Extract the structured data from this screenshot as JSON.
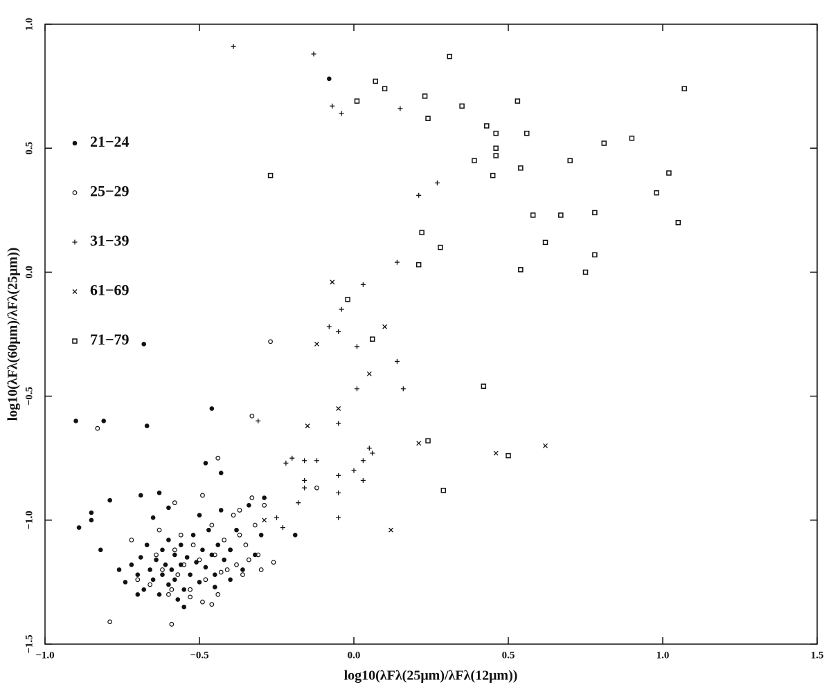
{
  "chart_data": {
    "type": "scatter",
    "xlabel": "log10(λFλ(25μm)/λFλ(12μm))",
    "ylabel": "log10(λFλ(60μm)/λFλ(25μm))",
    "xlim": [
      -1.0,
      1.5
    ],
    "ylim": [
      -1.5,
      1.0
    ],
    "xticks": [
      {
        "value": -1.0,
        "label": "−1.0"
      },
      {
        "value": -0.5,
        "label": "−0.5"
      },
      {
        "value": 0,
        "label": "0.0"
      },
      0.5,
      {
        "value": 1.0,
        "label": "1.0"
      },
      {
        "value": 1.5,
        "label": "1.5"
      }
    ],
    "yticks": [
      {
        "value": -1.5,
        "label": "−1.5"
      },
      {
        "value": -1.0,
        "label": "−1.0"
      },
      {
        "value": -0.5,
        "label": "−0.5"
      },
      {
        "value": 0,
        "label": "0.0"
      },
      0.5,
      {
        "value": 1.0,
        "label": "1.0"
      }
    ],
    "legend": "left",
    "series": [
      {
        "name": "21−24",
        "color": "#111111",
        "marker": "filled-circle",
        "x": [
          -0.9,
          -0.81,
          -0.67,
          -0.46,
          -0.48,
          -0.43,
          -0.89,
          -0.85,
          -0.85,
          -0.82,
          -0.79,
          -0.69,
          -0.63,
          -0.68,
          -0.76,
          -0.74,
          -0.72,
          -0.7,
          -0.69,
          -0.68,
          -0.67,
          -0.66,
          -0.65,
          -0.64,
          -0.63,
          -0.62,
          -0.62,
          -0.61,
          -0.6,
          -0.6,
          -0.59,
          -0.58,
          -0.58,
          -0.57,
          -0.56,
          -0.56,
          -0.55,
          -0.54,
          -0.53,
          -0.52,
          -0.51,
          -0.5,
          -0.49,
          -0.48,
          -0.47,
          -0.46,
          -0.45,
          -0.44,
          -0.43,
          -0.42,
          -0.4,
          -0.38,
          -0.36,
          -0.34,
          -0.32,
          -0.3,
          -0.29,
          -0.4,
          -0.5,
          -0.6,
          -0.65,
          -0.7,
          -0.55,
          -0.45,
          -0.19,
          -0.08
        ],
        "values": [
          -0.6,
          -0.6,
          -0.62,
          -0.55,
          -0.77,
          -0.81,
          -1.03,
          -0.97,
          -1.0,
          -1.12,
          -0.92,
          -0.9,
          -0.89,
          -0.29,
          -1.2,
          -1.25,
          -1.18,
          -1.22,
          -1.15,
          -1.28,
          -1.1,
          -1.2,
          -1.24,
          -1.16,
          -1.3,
          -1.12,
          -1.22,
          -1.18,
          -1.26,
          -1.08,
          -1.2,
          -1.14,
          -1.24,
          -1.32,
          -1.1,
          -1.18,
          -1.28,
          -1.15,
          -1.22,
          -1.06,
          -1.17,
          -1.25,
          -1.12,
          -1.19,
          -1.04,
          -1.14,
          -1.22,
          -1.1,
          -0.96,
          -1.16,
          -1.12,
          -1.04,
          -1.2,
          -0.94,
          -1.14,
          -1.06,
          -0.91,
          -1.24,
          -0.98,
          -0.95,
          -0.99,
          -1.3,
          -1.35,
          -1.27,
          -1.06,
          0.78
        ]
      },
      {
        "name": "25−29",
        "color": "#111111",
        "marker": "open-circle",
        "x": [
          -0.27,
          -0.83,
          -0.33,
          -0.44,
          -0.79,
          -0.59,
          -0.46,
          -0.72,
          -0.7,
          -0.66,
          -0.64,
          -0.62,
          -0.6,
          -0.58,
          -0.57,
          -0.56,
          -0.55,
          -0.53,
          -0.52,
          -0.5,
          -0.49,
          -0.48,
          -0.46,
          -0.45,
          -0.44,
          -0.42,
          -0.41,
          -0.4,
          -0.39,
          -0.38,
          -0.37,
          -0.36,
          -0.35,
          -0.34,
          -0.33,
          -0.32,
          -0.31,
          -0.3,
          -0.29,
          -0.26,
          -0.49,
          -0.53,
          -0.59,
          -0.63,
          -0.58,
          -0.43,
          -0.37,
          -0.12
        ],
        "values": [
          -0.28,
          -0.63,
          -0.58,
          -0.75,
          -1.41,
          -1.42,
          -1.34,
          -1.08,
          -1.24,
          -1.26,
          -1.14,
          -1.2,
          -1.3,
          -1.12,
          -1.22,
          -1.06,
          -1.18,
          -1.28,
          -1.1,
          -1.16,
          -0.9,
          -1.24,
          -1.02,
          -1.14,
          -1.3,
          -1.08,
          -1.2,
          -1.12,
          -0.98,
          -1.18,
          -1.06,
          -1.22,
          -1.1,
          -1.16,
          -0.91,
          -1.02,
          -1.14,
          -1.2,
          -0.94,
          -1.17,
          -1.33,
          -1.31,
          -1.28,
          -1.04,
          -0.93,
          -1.21,
          -0.96,
          -0.87
        ]
      },
      {
        "name": "31−39",
        "color": "#111111",
        "marker": "plus",
        "x": [
          -0.39,
          -0.13,
          -0.07,
          -0.04,
          0.15,
          0.27,
          0.21,
          0.14,
          0.03,
          -0.04,
          -0.08,
          -0.05,
          0.01,
          0.14,
          0.01,
          0.16,
          -0.05,
          0.05,
          0.06,
          0.03,
          0.0,
          -0.05,
          0.03,
          -0.05,
          -0.31,
          -0.22,
          -0.2,
          -0.16,
          -0.12,
          -0.16,
          -0.16,
          -0.18,
          -0.25,
          -0.23,
          -0.05
        ],
        "values": [
          0.91,
          0.88,
          0.67,
          0.64,
          0.66,
          0.36,
          0.31,
          0.04,
          -0.05,
          -0.15,
          -0.22,
          -0.24,
          -0.3,
          -0.36,
          -0.47,
          -0.47,
          -0.61,
          -0.71,
          -0.73,
          -0.76,
          -0.8,
          -0.82,
          -0.84,
          -0.89,
          -0.6,
          -0.77,
          -0.75,
          -0.76,
          -0.76,
          -0.84,
          -0.87,
          -0.93,
          -0.99,
          -1.03,
          -0.99
        ]
      },
      {
        "name": "61−69",
        "color": "#111111",
        "marker": "cross",
        "x": [
          -0.07,
          0.1,
          -0.12,
          0.05,
          -0.05,
          -0.15,
          0.21,
          0.46,
          0.62,
          -0.29,
          0.12
        ],
        "values": [
          -0.04,
          -0.22,
          -0.29,
          -0.41,
          -0.55,
          -0.62,
          -0.69,
          -0.73,
          -0.7,
          -1.0,
          -1.04
        ]
      },
      {
        "name": "71−79",
        "color": "#111111",
        "marker": "open-square",
        "x": [
          0.31,
          0.07,
          0.1,
          0.01,
          0.23,
          0.24,
          0.35,
          0.53,
          1.07,
          0.43,
          0.46,
          0.56,
          0.46,
          0.46,
          0.39,
          0.54,
          0.45,
          0.81,
          0.9,
          0.7,
          1.02,
          0.98,
          1.05,
          -0.27,
          0.58,
          0.67,
          0.78,
          0.22,
          0.62,
          0.28,
          0.78,
          0.21,
          0.54,
          0.75,
          -0.02,
          0.06,
          0.42,
          0.24,
          0.5,
          0.29
        ],
        "values": [
          0.87,
          0.77,
          0.74,
          0.69,
          0.71,
          0.62,
          0.67,
          0.69,
          0.74,
          0.59,
          0.56,
          0.56,
          0.5,
          0.47,
          0.45,
          0.42,
          0.39,
          0.52,
          0.54,
          0.45,
          0.4,
          0.32,
          0.2,
          0.39,
          0.23,
          0.23,
          0.24,
          0.16,
          0.12,
          0.1,
          0.07,
          0.03,
          0.01,
          0.0,
          -0.11,
          -0.27,
          -0.46,
          -0.68,
          -0.74,
          -0.88
        ]
      }
    ]
  }
}
